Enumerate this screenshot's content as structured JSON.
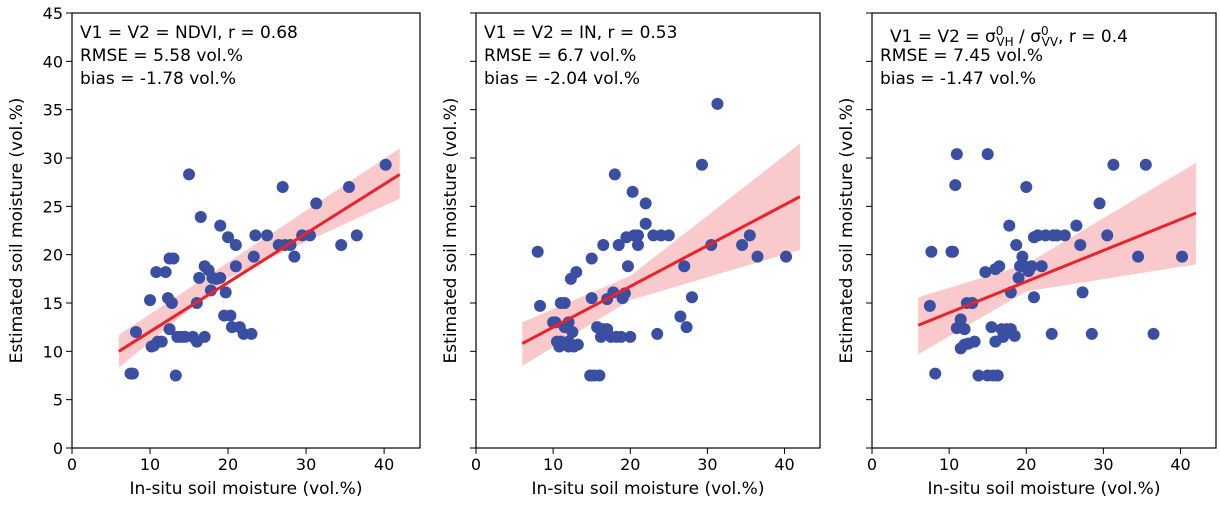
{
  "chart_data": [
    {
      "type": "scatter",
      "color": "#3a4fa1",
      "annotation": [
        "V1 = V2 = NDVI, r = 0.68",
        "RMSE = 5.58 vol.%",
        "bias = -1.78 vol.%"
      ],
      "xlabel": "In-situ soil moisture (vol.%)",
      "ylabel": "Estimated soil moisture (vol.%)",
      "xlim": [
        0,
        44.6
      ],
      "ylim": [
        0,
        45
      ],
      "xticks": [
        0,
        10,
        20,
        30,
        40
      ],
      "yticks": [
        0,
        5,
        10,
        15,
        20,
        25,
        30,
        35,
        40,
        45
      ],
      "ytick_labels": true,
      "x": [
        7.5,
        7.8,
        8.2,
        10,
        10.2,
        10.5,
        10.8,
        11,
        11.5,
        12,
        12.3,
        12.5,
        12.5,
        13,
        12.8,
        13.3,
        13.5,
        14,
        14.5,
        15,
        15.5,
        16,
        16,
        16.3,
        16.5,
        17,
        17,
        17.5,
        17.8,
        18,
        18.5,
        19,
        19,
        19.5,
        19.7,
        20,
        20.3,
        20.5,
        21,
        21,
        21.5,
        22,
        23,
        23.3,
        23.5,
        25,
        26.5,
        27,
        27.3,
        28,
        28.5,
        29.5,
        30.5,
        31.3,
        34.5,
        35.5,
        36.5,
        40.2
      ],
      "y": [
        7.7,
        7.7,
        12,
        15.3,
        10.5,
        10.6,
        18.2,
        11,
        11,
        18.2,
        15.5,
        12.3,
        19.6,
        19.6,
        15,
        7.5,
        11.5,
        11.5,
        11.5,
        28.3,
        11.5,
        11,
        15,
        17.6,
        23.9,
        11.5,
        18.8,
        18.4,
        16.3,
        17.6,
        17.5,
        17.6,
        23,
        13.7,
        16.1,
        21.8,
        13.7,
        12.5,
        21,
        18.8,
        12.5,
        11.8,
        11.8,
        19.8,
        22,
        22,
        21,
        27,
        21,
        21,
        19.8,
        22,
        22,
        25.3,
        21,
        27,
        22,
        29.3
      ],
      "fit": {
        "color": "#e8242a",
        "x": [
          6,
          42
        ],
        "y": [
          10,
          28.3
        ]
      },
      "band": {
        "color": "#f9c9cc",
        "x": [
          6,
          20,
          42
        ],
        "lower": [
          8.3,
          17.6,
          25.8
        ],
        "upper": [
          11.7,
          19.2,
          31
        ]
      }
    },
    {
      "type": "scatter",
      "color": "#3a4fa1",
      "annotation": [
        "V1 = V2 = IN, r = 0.53",
        "RMSE = 6.7 vol.%",
        "bias = -2.04 vol.%"
      ],
      "xlabel": "In-situ soil moisture (vol.%)",
      "ylabel": "Estimated soil moisture (vol.%)",
      "xlim": [
        0,
        44.6
      ],
      "ylim": [
        0,
        45
      ],
      "xticks": [
        0,
        10,
        20,
        30,
        40
      ],
      "yticks": [
        0,
        5,
        10,
        15,
        20,
        25,
        30,
        35,
        40,
        45
      ],
      "ytick_labels": false,
      "x": [
        8,
        8.3,
        10,
        10.3,
        10.5,
        10.8,
        11,
        11,
        11.5,
        11.5,
        12,
        12,
        12,
        12.3,
        12.5,
        12.7,
        13,
        13.2,
        14.8,
        15,
        15,
        15.3,
        15.7,
        16,
        16.2,
        16.5,
        16.5,
        17,
        17,
        17.5,
        17.8,
        18,
        18.2,
        18.5,
        18.8,
        19,
        19.3,
        19.5,
        19.7,
        20,
        20.3,
        20.5,
        21,
        21,
        22,
        22,
        23,
        23.5,
        24,
        25,
        26.5,
        27,
        27.3,
        28,
        29.3,
        30.5,
        31.3,
        34.5,
        35.5,
        36.5,
        40.2
      ],
      "y": [
        20.3,
        14.7,
        13,
        13,
        11,
        10.5,
        15,
        11,
        15,
        12.5,
        11,
        10.5,
        13,
        17.5,
        12,
        10.5,
        18.2,
        10.7,
        7.5,
        15.5,
        19.6,
        7.5,
        12.5,
        7.5,
        11.5,
        12.3,
        21,
        12.3,
        15.4,
        11.5,
        16.1,
        28.3,
        11.5,
        21,
        11.5,
        15.5,
        16,
        21.8,
        18.8,
        11.5,
        26.5,
        22,
        21,
        22,
        23.2,
        25.3,
        22,
        11.8,
        22,
        22,
        13.6,
        18.8,
        12.5,
        15.6,
        29.3,
        21,
        35.6,
        21,
        22,
        19.8,
        19.8
      ],
      "fit": {
        "color": "#e8242a",
        "x": [
          6,
          42
        ],
        "y": [
          10.8,
          26
        ]
      },
      "band": {
        "color": "#f9c9cc",
        "x": [
          6,
          20,
          42
        ],
        "lower": [
          8.5,
          15.3,
          20.5
        ],
        "upper": [
          13,
          17.8,
          31.5
        ]
      }
    },
    {
      "type": "scatter",
      "color": "#3a4fa1",
      "annotation": [
        [
          {
            "text": "V1 = V2 = σ"
          },
          {
            "text": "0",
            "pos": "sup"
          },
          {
            "text": "VH",
            "pos": "sub"
          },
          {
            "text": " / σ"
          },
          {
            "text": "0",
            "pos": "sup"
          },
          {
            "text": "VV",
            "pos": "sub"
          },
          {
            "text": ", r = 0.4"
          }
        ],
        "RMSE = 7.45 vol.%",
        "bias = -1.47 vol.%"
      ],
      "xlabel": "In-situ soil moisture (vol.%)",
      "ylabel": "Estimated soil moisture (vol.%)",
      "xlim": [
        0,
        44.6
      ],
      "ylim": [
        0,
        45
      ],
      "xticks": [
        0,
        10,
        20,
        30,
        40
      ],
      "yticks": [
        0,
        5,
        10,
        15,
        20,
        25,
        30,
        35,
        40,
        45
      ],
      "ytick_labels": false,
      "x": [
        7.5,
        7.7,
        8.2,
        10.3,
        10.5,
        10.8,
        11,
        11,
        11.5,
        11.5,
        12,
        12,
        12.3,
        12.5,
        13,
        13.3,
        13.8,
        14.7,
        15,
        15,
        15.5,
        15.7,
        16,
        16,
        16.3,
        16.5,
        16.8,
        17,
        17.5,
        17.8,
        18,
        18,
        18.5,
        18.7,
        19,
        19.2,
        19.5,
        19.8,
        20,
        20.3,
        20.7,
        21,
        21,
        21.5,
        22,
        22.5,
        23.3,
        23.5,
        24,
        25,
        26.5,
        27,
        27.3,
        28.5,
        29.5,
        30.5,
        31.3,
        34.5,
        35.5,
        36.5,
        40.2
      ],
      "y": [
        14.7,
        20.3,
        7.7,
        20.3,
        20.3,
        27.2,
        30.4,
        12.4,
        13.3,
        10.3,
        10.7,
        12.3,
        15,
        10.8,
        15,
        11,
        7.5,
        18.2,
        30.4,
        7.5,
        12.5,
        7.5,
        18.5,
        11,
        7.5,
        18.8,
        12.3,
        11.5,
        12.3,
        23,
        16.1,
        12.3,
        11.6,
        21,
        17.6,
        18.8,
        19.8,
        18.8,
        27,
        18.3,
        18.8,
        21.8,
        15.6,
        22,
        18.8,
        22,
        11.8,
        22,
        22,
        22,
        23,
        21,
        16.1,
        11.8,
        25.3,
        22,
        29.3,
        19.8,
        29.3,
        11.8,
        19.8
      ],
      "fit": {
        "color": "#e8242a",
        "x": [
          6,
          42
        ],
        "y": [
          12.7,
          24.3
        ]
      },
      "band": {
        "color": "#f9c9cc",
        "x": [
          6,
          20,
          42
        ],
        "lower": [
          9.7,
          16.2,
          19
        ],
        "upper": [
          15.6,
          19,
          29.5
        ]
      }
    }
  ]
}
